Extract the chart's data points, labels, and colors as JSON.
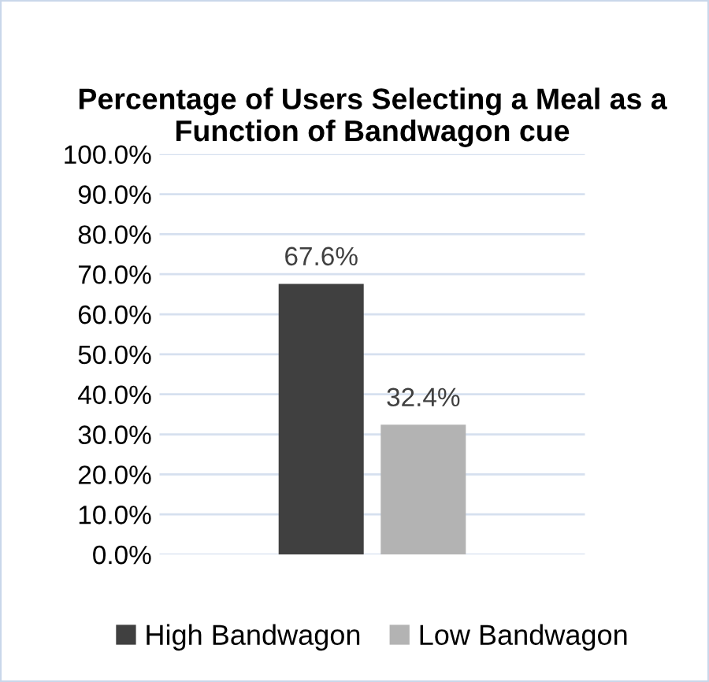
{
  "chart_data": {
    "type": "bar",
    "title": "Percentage of Users Selecting a Meal as a Function of Bandwagon cue",
    "categories": [
      null
    ],
    "series": [
      {
        "name": "High Bandwagon",
        "color": "#404040",
        "values": [
          67.6
        ],
        "value_labels": [
          "67.6%"
        ]
      },
      {
        "name": "Low Bandwagon",
        "color": "#b3b3b3",
        "values": [
          32.4
        ],
        "value_labels": [
          "32.4%"
        ]
      }
    ],
    "ylim": [
      0,
      100
    ],
    "yticks": [
      {
        "value": 0,
        "label": "0.0%"
      },
      {
        "value": 10,
        "label": "10.0%"
      },
      {
        "value": 20,
        "label": "20.0%"
      },
      {
        "value": 30,
        "label": "30.0%"
      },
      {
        "value": 40,
        "label": "40.0%"
      },
      {
        "value": 50,
        "label": "50.0%"
      },
      {
        "value": 60,
        "label": "60.0%"
      },
      {
        "value": 70,
        "label": "70.0%"
      },
      {
        "value": 80,
        "label": "80.0%"
      },
      {
        "value": 90,
        "label": "90.0%"
      },
      {
        "value": 100,
        "label": "100.0%"
      }
    ],
    "grid": "y",
    "legend": "bottom"
  }
}
